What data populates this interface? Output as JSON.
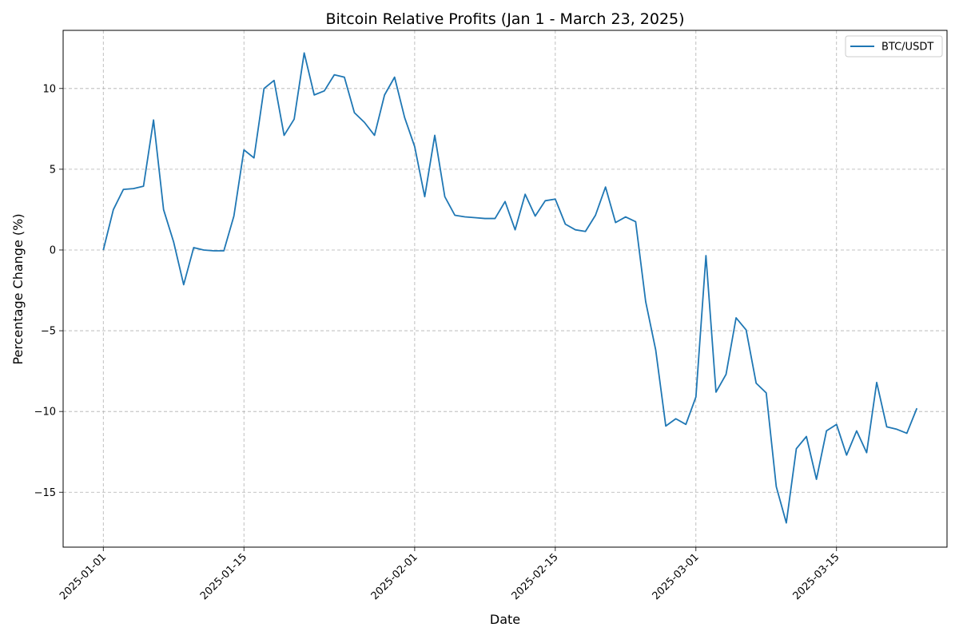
{
  "chart_data": {
    "type": "line",
    "title": "Bitcoin Relative Profits (Jan 1 - March 23, 2025)",
    "xlabel": "Date",
    "ylabel": "Percentage Change (%)",
    "x_start": "2025-01-01",
    "x_end": "2025-03-23",
    "x_range": [
      "2024-12-28",
      "2025-03-26"
    ],
    "ylim": [
      -18.4,
      13.6
    ],
    "x_ticks": [
      "2025-01-01",
      "2025-01-15",
      "2025-02-01",
      "2025-02-15",
      "2025-03-01",
      "2025-03-15"
    ],
    "y_ticks": [
      -15,
      -10,
      -5,
      0,
      5,
      10
    ],
    "y_tick_labels": [
      "−15",
      "−10",
      "−5",
      "0",
      "5",
      "10"
    ],
    "grid": true,
    "legend_position": "top-right",
    "series": [
      {
        "name": "BTC/USDT",
        "color": "#1f77b4",
        "values": [
          0.0,
          2.5,
          3.75,
          3.8,
          3.95,
          8.05,
          2.5,
          0.5,
          -2.15,
          0.15,
          0.0,
          -0.05,
          -0.05,
          2.1,
          6.2,
          5.7,
          10.0,
          10.5,
          7.1,
          8.1,
          12.2,
          9.6,
          9.85,
          10.85,
          10.7,
          8.5,
          7.9,
          7.1,
          9.6,
          10.7,
          8.2,
          6.4,
          3.3,
          7.1,
          3.3,
          2.15,
          2.05,
          2.0,
          1.95,
          1.95,
          3.0,
          1.25,
          3.45,
          2.1,
          3.05,
          3.15,
          1.6,
          1.25,
          1.15,
          2.15,
          3.9,
          1.7,
          2.05,
          1.75,
          -3.2,
          -6.2,
          -10.9,
          -10.45,
          -10.8,
          -9.1,
          -0.35,
          -8.8,
          -7.7,
          -4.2,
          -4.95,
          -8.25,
          -8.85,
          -14.65,
          -16.9,
          -12.3,
          -11.55,
          -14.2,
          -11.2,
          -10.8,
          -12.7,
          -11.2,
          -12.55,
          -8.2,
          -10.95,
          -11.1,
          -11.35,
          -9.8
        ]
      }
    ]
  }
}
